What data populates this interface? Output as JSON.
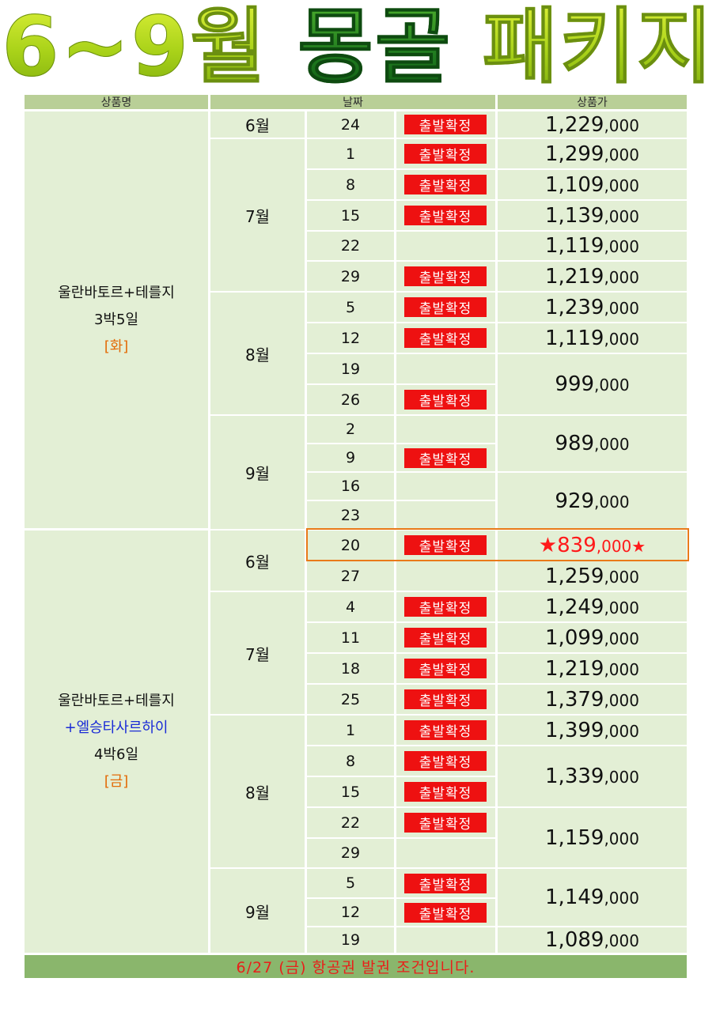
{
  "title": {
    "a": "6~9월",
    "b": "몽골",
    "c": "패키지"
  },
  "header": {
    "name": "상품명",
    "date": "날짜",
    "price": "상품가"
  },
  "badge_text": "출발확정",
  "products": [
    {
      "line1": "울란바토르+테를지",
      "line2": "",
      "duration": "3박5일",
      "day": "[화]"
    },
    {
      "line1": "울란바토르+테를지",
      "line2": "+엘승타사르하이",
      "duration": "4박6일",
      "day": "[금]"
    }
  ],
  "months": [
    "6월",
    "7월",
    "8월",
    "9월",
    "6월",
    "7월",
    "8월",
    "9월"
  ],
  "rows": [
    {
      "day": "24",
      "confirmed": true
    },
    {
      "day": "1",
      "confirmed": true
    },
    {
      "day": "8",
      "confirmed": true
    },
    {
      "day": "15",
      "confirmed": true
    },
    {
      "day": "22",
      "confirmed": false
    },
    {
      "day": "29",
      "confirmed": true
    },
    {
      "day": "5",
      "confirmed": true
    },
    {
      "day": "12",
      "confirmed": true
    },
    {
      "day": "19",
      "confirmed": false
    },
    {
      "day": "26",
      "confirmed": true
    },
    {
      "day": "2",
      "confirmed": false
    },
    {
      "day": "9",
      "confirmed": true
    },
    {
      "day": "16",
      "confirmed": false
    },
    {
      "day": "23",
      "confirmed": false
    },
    {
      "day": "20",
      "confirmed": true
    },
    {
      "day": "27",
      "confirmed": false
    },
    {
      "day": "4",
      "confirmed": true
    },
    {
      "day": "11",
      "confirmed": true
    },
    {
      "day": "18",
      "confirmed": true
    },
    {
      "day": "25",
      "confirmed": true
    },
    {
      "day": "1",
      "confirmed": true
    },
    {
      "day": "8",
      "confirmed": true
    },
    {
      "day": "15",
      "confirmed": true
    },
    {
      "day": "22",
      "confirmed": true
    },
    {
      "day": "29",
      "confirmed": false
    },
    {
      "day": "5",
      "confirmed": true
    },
    {
      "day": "12",
      "confirmed": true
    },
    {
      "day": "19",
      "confirmed": false
    }
  ],
  "prices": [
    {
      "main": "1,229",
      "tail": ",000",
      "hot": false
    },
    {
      "main": "1,299",
      "tail": ",000",
      "hot": false
    },
    {
      "main": "1,109",
      "tail": ",000",
      "hot": false
    },
    {
      "main": "1,139",
      "tail": ",000",
      "hot": false
    },
    {
      "main": "1,119",
      "tail": ",000",
      "hot": false
    },
    {
      "main": "1,219",
      "tail": ",000",
      "hot": false
    },
    {
      "main": "1,239",
      "tail": ",000",
      "hot": false
    },
    {
      "main": "1,119",
      "tail": ",000",
      "hot": false
    },
    {
      "main": "999",
      "tail": ",000",
      "hot": false
    },
    {
      "main": "989",
      "tail": ",000",
      "hot": false
    },
    {
      "main": "929",
      "tail": ",000",
      "hot": false
    },
    {
      "main": "★839",
      "tail": ",000★",
      "hot": true
    },
    {
      "main": "1,259",
      "tail": ",000",
      "hot": false
    },
    {
      "main": "1,249",
      "tail": ",000",
      "hot": false
    },
    {
      "main": "1,099",
      "tail": ",000",
      "hot": false
    },
    {
      "main": "1,219",
      "tail": ",000",
      "hot": false
    },
    {
      "main": "1,379",
      "tail": ",000",
      "hot": false
    },
    {
      "main": "1,399",
      "tail": ",000",
      "hot": false
    },
    {
      "main": "1,339",
      "tail": ",000",
      "hot": false
    },
    {
      "main": "1,159",
      "tail": ",000",
      "hot": false
    },
    {
      "main": "1,149",
      "tail": ",000",
      "hot": false
    },
    {
      "main": "1,089",
      "tail": ",000",
      "hot": false
    }
  ],
  "footer": "6/27 (금) 항공권 발권 조건입니다."
}
